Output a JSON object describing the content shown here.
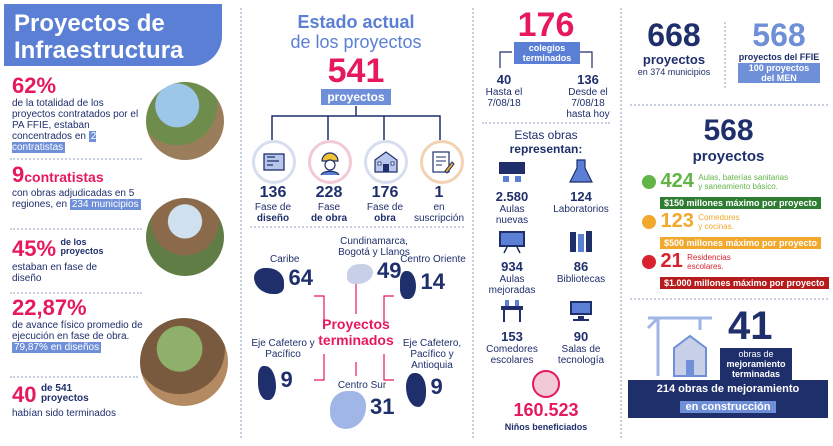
{
  "left": {
    "title_line1": "Proyectos de",
    "title_line2": "Infraestructura",
    "stat1": {
      "pct": "62%",
      "text": "de la totalidad de los proyectos contratados por el PA FFIE, estaban concentrados en",
      "hl": "2 contratistas"
    },
    "stat2": {
      "num": "9",
      "head": "contratistas",
      "text": "con obras adjudicadas en 5 regiones, en",
      "hl": "234 municipios"
    },
    "stat3": {
      "pct": "45%",
      "head": "de los proyectos",
      "text": "estaban en fase de diseño"
    },
    "stat4": {
      "pct": "22,87%",
      "text": "de avance físico promedio de ejecución en fase de obra.",
      "hl": "79,87% en diseños"
    },
    "stat5": {
      "num": "40",
      "head": "de 541 proyectos",
      "text": "habían sido terminados"
    }
  },
  "estado": {
    "title1": "Estado actual",
    "title2": "de los proyectos",
    "total": "541",
    "total_label": "proyectos",
    "phases": [
      {
        "num": "136",
        "label1": "Fase de",
        "label2": "diseño",
        "icon": "blueprint-icon"
      },
      {
        "num": "228",
        "label1": "Fase",
        "label2": "de obra",
        "icon": "worker-icon"
      },
      {
        "num": "176",
        "label1": "Fase de",
        "label2": "obra",
        "icon": "school-icon"
      },
      {
        "num": "1",
        "label1": "en",
        "label2": "suscripción",
        "icon": "contract-icon"
      }
    ],
    "terminados_label1": "Proyectos",
    "terminados_label2": "terminados",
    "regions": [
      {
        "name": "Caribe",
        "num": "64"
      },
      {
        "name": "Cundinamarca, Bogotá y Llanos",
        "num": "49"
      },
      {
        "name": "Centro Oriente",
        "num": "14"
      },
      {
        "name": "Eje Cafetero y Pacífico",
        "num": "9"
      },
      {
        "name": "Centro Sur",
        "num": "31"
      },
      {
        "name": "Eje Cafetero, Pacífico y Antioquia",
        "num": "9"
      }
    ]
  },
  "colegios": {
    "total": "176",
    "label1": "colegios",
    "label2": "terminados",
    "a_num": "40",
    "a_text1": "Hasta el",
    "a_text2": "7/08/18",
    "b_num": "136",
    "b_text1": "Desde el",
    "b_text2": "7/08/18",
    "b_text3": "hasta hoy",
    "obras_title1": "Estas obras",
    "obras_title2": "representan:",
    "obras": [
      {
        "num": "2.580",
        "label1": "Aulas",
        "label2": "nuevas",
        "icon": "classroom-icon"
      },
      {
        "num": "124",
        "label1": "Laboratorios",
        "label2": "",
        "icon": "lab-icon"
      },
      {
        "num": "934",
        "label1": "Aulas",
        "label2": "mejoradas",
        "icon": "blackboard-icon"
      },
      {
        "num": "86",
        "label1": "Bibliotecas",
        "label2": "",
        "icon": "books-icon"
      },
      {
        "num": "153",
        "label1": "Comedores",
        "label2": "escolares",
        "icon": "dining-icon"
      },
      {
        "num": "90",
        "label1": "Salas de",
        "label2": "tecnología",
        "icon": "computer-icon"
      }
    ],
    "ninos_num": "160.523",
    "ninos_label": "Niños beneficiados"
  },
  "right": {
    "p668_num": "668",
    "p668_label": "proyectos",
    "p668_sub": "en 374 municipios",
    "p568_num": "568",
    "p568_label": "proyectos del FFIE",
    "p568_hl1": "100 proyectos",
    "p568_hl2": "del MEN",
    "big568_num": "568",
    "big568_label": "proyectos",
    "tiers": [
      {
        "num": "424",
        "text1": "Aulas, baterías sanitarias",
        "text2": "y saneamiento básico.",
        "bar": "$150 millones máximo por proyecto",
        "color": "#62b447"
      },
      {
        "num": "123",
        "text1": "Comedores",
        "text2": "y cocinas.",
        "bar": "$500 millones máximo por proyecto",
        "color": "#f1a82c"
      },
      {
        "num": "21",
        "text1": "Residencias",
        "text2": "escolares.",
        "bar": "$1.000 millones máximo por proyecto",
        "color": "#d8232f"
      }
    ],
    "obras41_num": "41",
    "obras41_text1": "obras de",
    "obras41_text2": "mejoramiento",
    "obras41_text3": "terminadas",
    "bottom1": "214 obras de mejoramiento",
    "bottom2": "en construcción"
  },
  "colors": {
    "navy": "#1f2f6b",
    "pink": "#e6195e",
    "blue": "#6f8fd8",
    "title_bg": "#5b7fd4"
  }
}
